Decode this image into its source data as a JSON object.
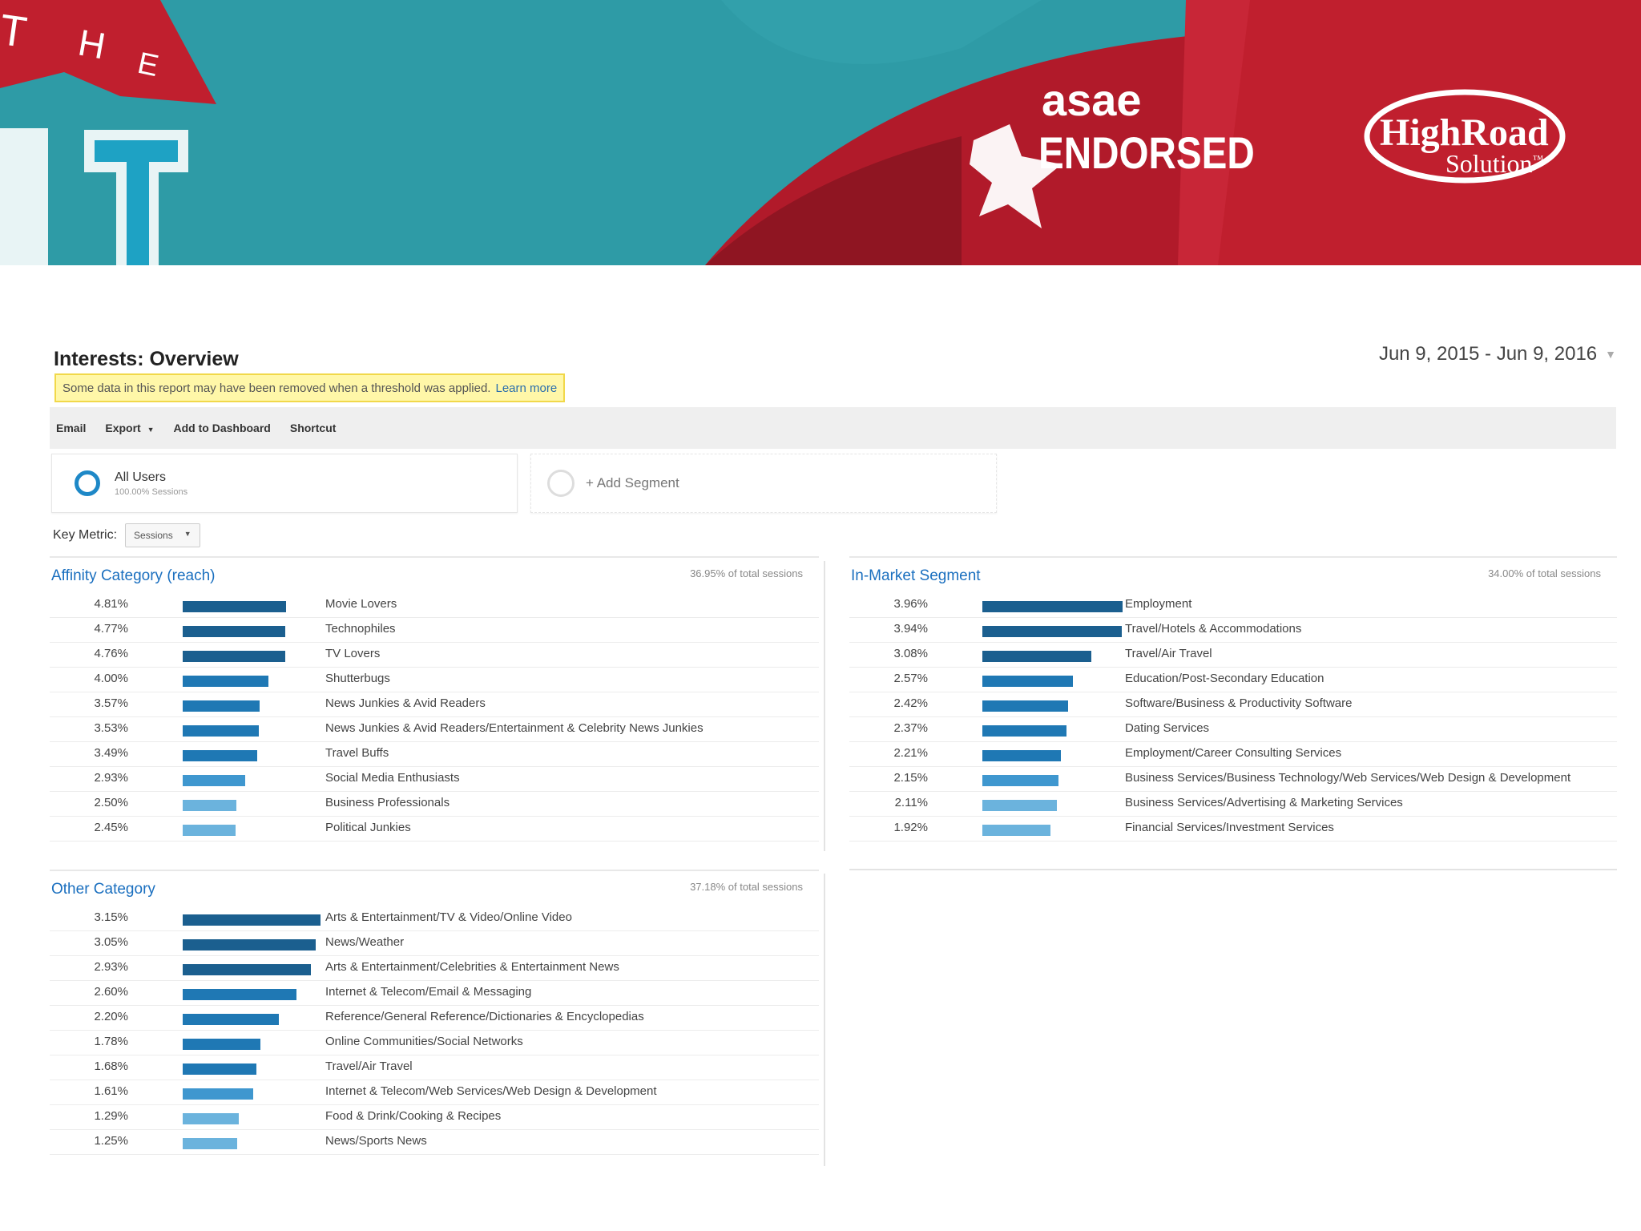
{
  "banner": {
    "the_letters": [
      "T",
      "H",
      "E"
    ],
    "asae": "asae",
    "endorsed": "ENDORSED",
    "highroad": "HighRoad",
    "solution": "Solution",
    "tm": "™",
    "colors": {
      "teal": "#2e9ba6",
      "red": "#c01f2e",
      "dark_red": "#8f1522"
    }
  },
  "report": {
    "title": "Interests: Overview",
    "date_range": "Jun 9, 2015 - Jun 9, 2016",
    "notice": "Some data in this report may have been removed when a threshold was applied.",
    "notice_link": "Learn more",
    "toolbar": {
      "email": "Email",
      "export": "Export",
      "add_to_dashboard": "Add to Dashboard",
      "shortcut": "Shortcut"
    },
    "segment_all": {
      "name": "All Users",
      "sub": "100.00% Sessions"
    },
    "segment_add": "+ Add Segment",
    "key_metric_label": "Key Metric:",
    "key_metric_value": "Sessions"
  },
  "panels": [
    {
      "id": "affinity",
      "title": "Affinity Category (reach)",
      "total": "36.95% of total sessions",
      "rows": [
        {
          "pct": "4.81%",
          "value": 4.81,
          "label": "Movie Lovers"
        },
        {
          "pct": "4.77%",
          "value": 4.77,
          "label": "Technophiles"
        },
        {
          "pct": "4.76%",
          "value": 4.76,
          "label": "TV Lovers"
        },
        {
          "pct": "4.00%",
          "value": 4.0,
          "label": "Shutterbugs"
        },
        {
          "pct": "3.57%",
          "value": 3.57,
          "label": "News Junkies & Avid Readers"
        },
        {
          "pct": "3.53%",
          "value": 3.53,
          "label": "News Junkies & Avid Readers/Entertainment & Celebrity News Junkies"
        },
        {
          "pct": "3.49%",
          "value": 3.49,
          "label": "Travel Buffs"
        },
        {
          "pct": "2.93%",
          "value": 2.93,
          "label": "Social Media Enthusiasts"
        },
        {
          "pct": "2.50%",
          "value": 2.5,
          "label": "Business Professionals"
        },
        {
          "pct": "2.45%",
          "value": 2.45,
          "label": "Political Junkies"
        }
      ]
    },
    {
      "id": "inmarket",
      "title": "In-Market Segment",
      "total": "34.00% of total sessions",
      "rows": [
        {
          "pct": "3.96%",
          "value": 3.96,
          "label": "Employment"
        },
        {
          "pct": "3.94%",
          "value": 3.94,
          "label": "Travel/Hotels & Accommodations"
        },
        {
          "pct": "3.08%",
          "value": 3.08,
          "label": "Travel/Air Travel"
        },
        {
          "pct": "2.57%",
          "value": 2.57,
          "label": "Education/Post-Secondary Education"
        },
        {
          "pct": "2.42%",
          "value": 2.42,
          "label": "Software/Business & Productivity Software"
        },
        {
          "pct": "2.37%",
          "value": 2.37,
          "label": "Dating Services"
        },
        {
          "pct": "2.21%",
          "value": 2.21,
          "label": "Employment/Career Consulting Services"
        },
        {
          "pct": "2.15%",
          "value": 2.15,
          "label": "Business Services/Business Technology/Web Services/Web Design & Development"
        },
        {
          "pct": "2.11%",
          "value": 2.11,
          "label": "Business Services/Advertising & Marketing Services"
        },
        {
          "pct": "1.92%",
          "value": 1.92,
          "label": "Financial Services/Investment Services"
        }
      ]
    },
    {
      "id": "other",
      "title": "Other Category",
      "total": "37.18% of total sessions",
      "rows": [
        {
          "pct": "3.15%",
          "value": 3.15,
          "label": "Arts & Entertainment/TV & Video/Online Video"
        },
        {
          "pct": "3.05%",
          "value": 3.05,
          "label": "News/Weather"
        },
        {
          "pct": "2.93%",
          "value": 2.93,
          "label": "Arts & Entertainment/Celebrities & Entertainment News"
        },
        {
          "pct": "2.60%",
          "value": 2.6,
          "label": "Internet & Telecom/Email & Messaging"
        },
        {
          "pct": "2.20%",
          "value": 2.2,
          "label": "Reference/General Reference/Dictionaries & Encyclopedias"
        },
        {
          "pct": "1.78%",
          "value": 1.78,
          "label": "Online Communities/Social Networks"
        },
        {
          "pct": "1.68%",
          "value": 1.68,
          "label": "Travel/Air Travel"
        },
        {
          "pct": "1.61%",
          "value": 1.61,
          "label": "Internet & Telecom/Web Services/Web Design & Development"
        },
        {
          "pct": "1.29%",
          "value": 1.29,
          "label": "Food & Drink/Cooking & Recipes"
        },
        {
          "pct": "1.25%",
          "value": 1.25,
          "label": "News/Sports News"
        }
      ]
    }
  ],
  "bar_colors": [
    "#1b5f8f",
    "#1f78b4",
    "#3f97cf",
    "#6bb3dd"
  ]
}
